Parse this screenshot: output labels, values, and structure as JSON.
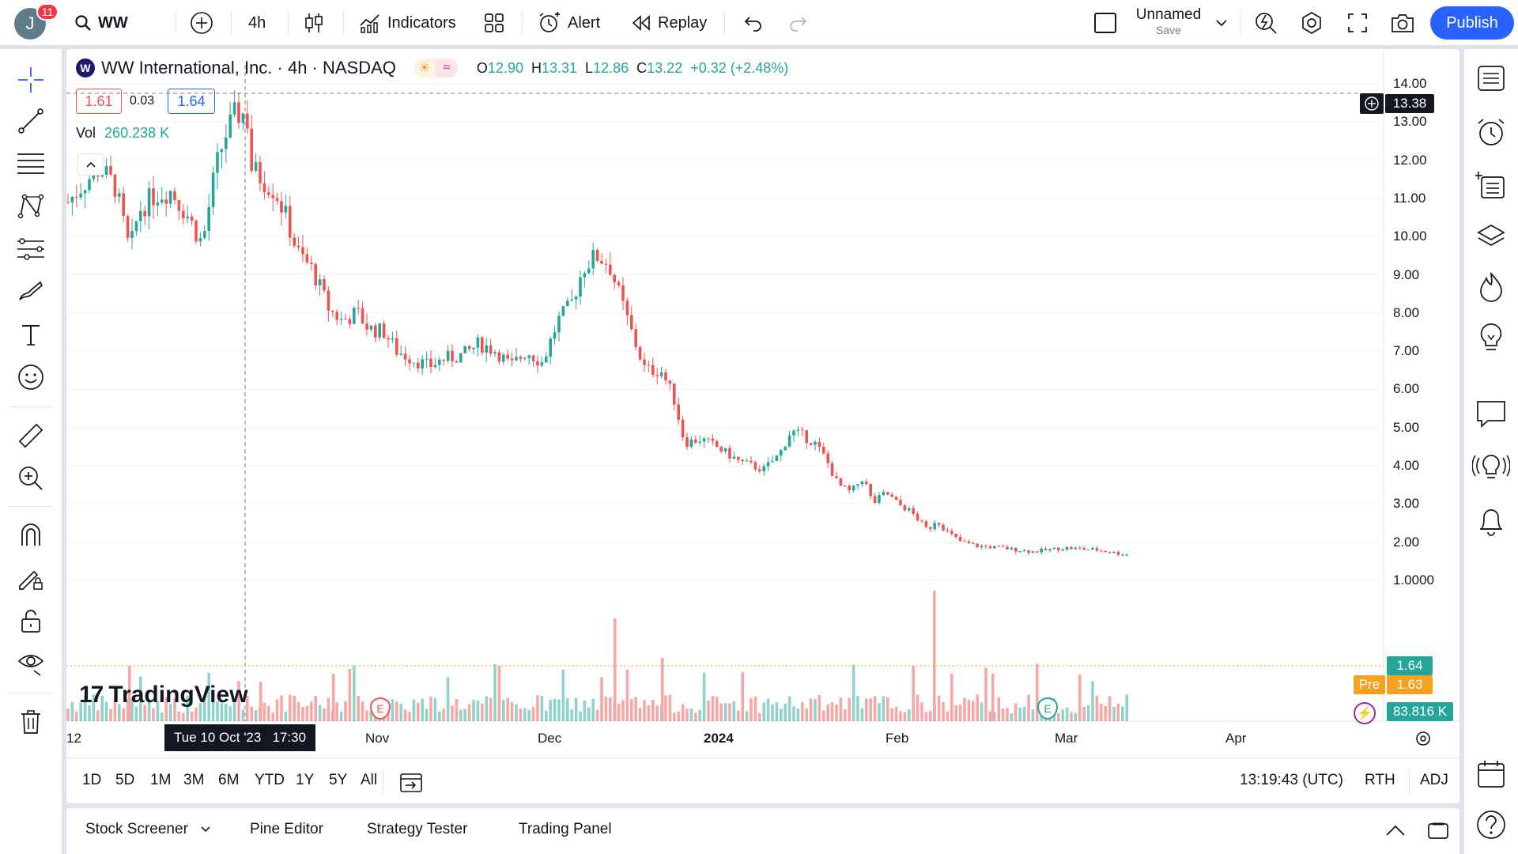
{
  "header": {
    "avatar_letter": "J",
    "notification_count": "11",
    "symbol": "WW",
    "interval": "4h",
    "indicators_label": "Indicators",
    "alert_label": "Alert",
    "replay_label": "Replay",
    "layout_name": "Unnamed",
    "layout_save": "Save",
    "publish_label": "Publish"
  },
  "legend": {
    "title": "WW International, Inc. · 4h · NASDAQ",
    "logo_letter": "W",
    "open_label": "O",
    "open": "12.90",
    "high_label": "H",
    "high": "13.31",
    "low_label": "L",
    "low": "12.86",
    "close_label": "C",
    "close": "13.22",
    "change": "+0.32 (+2.48%)",
    "bid": "1.61",
    "spread": "0.03",
    "ask": "1.64",
    "vol_label": "Vol",
    "vol_value": "260.238 K"
  },
  "price_axis": {
    "labels": [
      "14.00",
      "13.00",
      "12.00",
      "11.00",
      "10.00",
      "9.00",
      "8.00",
      "7.00",
      "6.00",
      "5.00",
      "4.00",
      "3.00",
      "2.00",
      "1.0000"
    ],
    "crosshair_price": "13.38",
    "last_price": "1.64",
    "pre_label": "Pre",
    "pre_price": "1.63",
    "volume_tag": "83.816 K"
  },
  "time_axis": {
    "labels": [
      "12",
      "Nov",
      "Dec",
      "2024",
      "Feb",
      "Mar",
      "Apr"
    ],
    "crosshair_time": "Tue 10 Oct '23   17:30"
  },
  "watermark": "TradingView",
  "events": {
    "earnings": "E"
  },
  "range_bar": {
    "ranges": [
      "1D",
      "5D",
      "1M",
      "3M",
      "6M",
      "YTD",
      "1Y",
      "5Y",
      "All"
    ],
    "clock": "13:19:43 (UTC)",
    "session": "RTH",
    "adj": "ADJ"
  },
  "bottom_panel": {
    "tabs": [
      "Stock Screener",
      "Pine Editor",
      "Strategy Tester",
      "Trading Panel"
    ]
  },
  "colors": {
    "up": "#26a69a",
    "down": "#ef5350",
    "accent": "#2962ff",
    "pre": "#f7a021",
    "last": "#26a69a"
  }
}
